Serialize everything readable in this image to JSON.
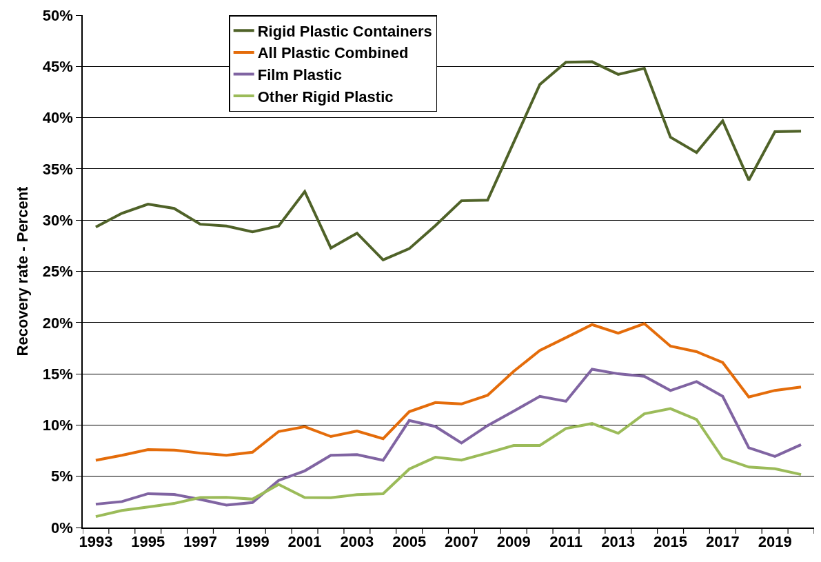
{
  "chart_data": {
    "type": "line",
    "ylabel": "Recovery rate - Percent",
    "categories": [
      "1993",
      null,
      "1995",
      null,
      "1997",
      null,
      "1999",
      null,
      "2001",
      null,
      "2003",
      null,
      "2005",
      null,
      "2007",
      null,
      "2009",
      null,
      "2011",
      null,
      "2013",
      null,
      "2015",
      null,
      "2017",
      null,
      "2019",
      null
    ],
    "series": [
      {
        "name": "Rigid Plastic Containers",
        "color": "#4f6228",
        "values": [
          29.33,
          30.67,
          31.56,
          31.14,
          29.6,
          29.42,
          28.86,
          29.42,
          32.79,
          27.28,
          28.72,
          26.12,
          27.21,
          29.46,
          31.89,
          31.94,
          37.59,
          43.24,
          45.41,
          45.45,
          44.22,
          44.81,
          38.09,
          36.6,
          39.69,
          33.9,
          38.63,
          38.68
        ]
      },
      {
        "name": "All Plastic Combined",
        "color": "#e46c0a",
        "values": [
          6.56,
          7.05,
          7.6,
          7.56,
          7.26,
          7.05,
          7.35,
          9.37,
          9.84,
          8.88,
          9.42,
          8.67,
          11.3,
          12.19,
          12.06,
          12.91,
          15.24,
          17.28,
          18.53,
          19.8,
          18.96,
          19.9,
          17.7,
          17.16,
          16.1,
          12.74,
          13.38,
          13.71
        ]
      },
      {
        "name": "Film Plastic",
        "color": "#8064a2",
        "values": [
          2.28,
          2.53,
          3.3,
          3.23,
          2.74,
          2.19,
          2.44,
          4.6,
          5.53,
          7.05,
          7.12,
          6.56,
          10.44,
          9.86,
          8.25,
          9.95,
          11.35,
          12.8,
          12.32,
          15.45,
          15.0,
          14.76,
          13.37,
          14.24,
          12.8,
          7.78,
          6.94,
          8.08
        ]
      },
      {
        "name": "Other Rigid Plastic",
        "color": "#9bbb59",
        "values": [
          1.07,
          1.67,
          2.0,
          2.35,
          2.93,
          2.95,
          2.77,
          4.21,
          2.93,
          2.91,
          3.21,
          3.3,
          5.7,
          6.86,
          6.58,
          7.28,
          8.01,
          8.01,
          9.67,
          10.15,
          9.2,
          11.1,
          11.6,
          10.54,
          6.77,
          5.9,
          5.73,
          5.17
        ]
      }
    ],
    "ylim": [
      0,
      50
    ],
    "yticks": [
      {
        "value": 0,
        "label": "0%"
      },
      {
        "value": 5,
        "label": "5%"
      },
      {
        "value": 10,
        "label": "10%"
      },
      {
        "value": 15,
        "label": "15%"
      },
      {
        "value": 20,
        "label": "20%"
      },
      {
        "value": 25,
        "label": "25%"
      },
      {
        "value": 30,
        "label": "30%"
      },
      {
        "value": 35,
        "label": "35%"
      },
      {
        "value": 40,
        "label": "40%"
      },
      {
        "value": 45,
        "label": "45%"
      },
      {
        "value": 50,
        "label": "50%"
      }
    ],
    "grid": "y",
    "legend": "top left",
    "marker": "none",
    "line_style": "solid"
  }
}
